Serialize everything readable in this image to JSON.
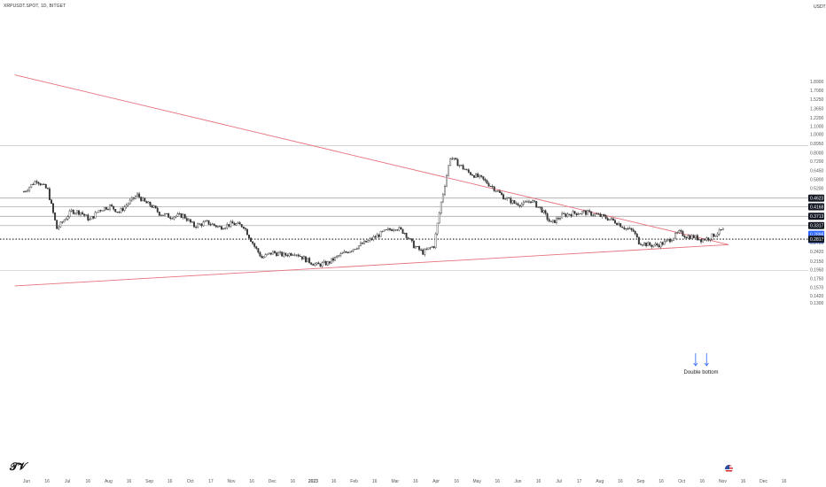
{
  "symbol_title": "XRPUSDT.SPOT, 1D, BITGET",
  "currency": "USDT",
  "logo_glyph": "𝓣𝓥",
  "chart_data": {
    "type": "candlestick",
    "title": "XRPUSDT.SPOT, 1D, BITGET",
    "y_scale": "log",
    "ylim": [
      0.1355,
      2.0
    ],
    "price_ticks": [
      "1.8900",
      "1.7000",
      "1.5250",
      "1.3650",
      "1.2200",
      "1.1000",
      "1.0000",
      "0.8950",
      "0.8000",
      "0.7200",
      "0.6450",
      "0.5800",
      "0.5200",
      "0.4600",
      "0.4150",
      "0.3713",
      "0.3317",
      "0.3000",
      "0.2700",
      "0.2420",
      "0.2150",
      "0.1950",
      "0.1750",
      "0.1570",
      "0.1420",
      "0.1300"
    ],
    "time_labels": [
      "Jun",
      "16",
      "Jul",
      "16",
      "Aug",
      "16",
      "Sep",
      "16",
      "Oct",
      "17",
      "Nov",
      "16",
      "Dec",
      "16",
      "2023",
      "16",
      "Feb",
      "16",
      "Mar",
      "16",
      "Apr",
      "16",
      "May",
      "16",
      "Jun",
      "16",
      "Jul",
      "17",
      "Aug",
      "16",
      "Sep",
      "16",
      "Oct",
      "16",
      "Nov",
      "16",
      "Dec",
      "16"
    ],
    "price_path": [
      [
        0,
        0.5
      ],
      [
        7,
        0.575
      ],
      [
        13,
        0.51
      ],
      [
        18,
        0.32
      ],
      [
        26,
        0.395
      ],
      [
        31,
        0.39
      ],
      [
        36,
        0.355
      ],
      [
        41,
        0.4
      ],
      [
        47,
        0.42
      ],
      [
        52,
        0.39
      ],
      [
        57,
        0.435
      ],
      [
        62,
        0.48
      ],
      [
        66,
        0.44
      ],
      [
        70,
        0.42
      ],
      [
        74,
        0.385
      ],
      [
        80,
        0.37
      ],
      [
        87,
        0.375
      ],
      [
        93,
        0.33
      ],
      [
        100,
        0.345
      ],
      [
        107,
        0.325
      ],
      [
        114,
        0.34
      ],
      [
        120,
        0.33
      ],
      [
        126,
        0.258
      ],
      [
        130,
        0.225
      ],
      [
        136,
        0.24
      ],
      [
        142,
        0.232
      ],
      [
        148,
        0.24
      ],
      [
        154,
        0.22
      ],
      [
        160,
        0.206
      ],
      [
        166,
        0.211
      ],
      [
        172,
        0.23
      ],
      [
        180,
        0.252
      ],
      [
        188,
        0.275
      ],
      [
        196,
        0.305
      ],
      [
        203,
        0.325
      ],
      [
        208,
        0.305
      ],
      [
        213,
        0.26
      ],
      [
        218,
        0.24
      ],
      [
        224,
        0.26
      ],
      [
        228,
        0.44
      ],
      [
        233,
        0.76
      ],
      [
        238,
        0.69
      ],
      [
        243,
        0.63
      ],
      [
        250,
        0.585
      ],
      [
        256,
        0.53
      ],
      [
        262,
        0.47
      ],
      [
        268,
        0.435
      ],
      [
        273,
        0.43
      ],
      [
        277,
        0.45
      ],
      [
        283,
        0.4
      ],
      [
        288,
        0.34
      ],
      [
        294,
        0.375
      ],
      [
        300,
        0.385
      ],
      [
        306,
        0.39
      ],
      [
        312,
        0.38
      ],
      [
        318,
        0.365
      ],
      [
        324,
        0.345
      ],
      [
        329,
        0.32
      ],
      [
        333,
        0.31
      ],
      [
        336,
        0.272
      ],
      [
        342,
        0.262
      ],
      [
        346,
        0.262
      ],
      [
        350,
        0.27
      ],
      [
        354,
        0.285
      ],
      [
        358,
        0.305
      ],
      [
        362,
        0.292
      ],
      [
        366,
        0.29
      ],
      [
        370,
        0.28
      ],
      [
        374,
        0.285
      ],
      [
        378,
        0.3
      ],
      [
        382,
        0.315
      ]
    ],
    "horizontal_levels": [
      {
        "price": 0.87,
        "color": "#c8c8c8",
        "style": "solid"
      },
      {
        "price": 0.4623,
        "color": "#9a9a9a",
        "style": "solid"
      },
      {
        "price": 0.4168,
        "color": "#9a9a9a",
        "style": "solid"
      },
      {
        "price": 0.3713,
        "color": "#9a9a9a",
        "style": "solid"
      },
      {
        "price": 0.3317,
        "color": "#9a9a9a",
        "style": "solid"
      },
      {
        "price": 0.2817,
        "color": "#222222",
        "style": "dotted"
      },
      {
        "price": 0.193,
        "color": "#c8c8c8",
        "style": "solid"
      }
    ],
    "trendlines": [
      {
        "name": "descending resistance",
        "color": "#e8717d",
        "from": [
          -5,
          2.05
        ],
        "to": [
          385,
          0.2635
        ]
      },
      {
        "name": "ascending support",
        "color": "#e8717d",
        "from": [
          -5,
          0.16
        ],
        "to": [
          385,
          0.2635
        ]
      }
    ],
    "price_tags": [
      {
        "label": "0.4623",
        "price": 0.4623,
        "bg": "#131722"
      },
      {
        "label": "0.4168",
        "price": 0.4168,
        "bg": "#131722"
      },
      {
        "label": "0.3713",
        "price": 0.3713,
        "bg": "#131722"
      },
      {
        "label": "0.3317",
        "price": 0.3317,
        "bg": "#131722"
      },
      {
        "label": "0.2898",
        "price": 0.2985,
        "bg": "#2962ff"
      },
      {
        "label": "0.2817",
        "price": 0.2817,
        "bg": "#131722"
      }
    ],
    "annotation": {
      "text": "Double bottom",
      "arrow_color": "#2962ff",
      "arrow_days": [
        367,
        373
      ]
    }
  }
}
